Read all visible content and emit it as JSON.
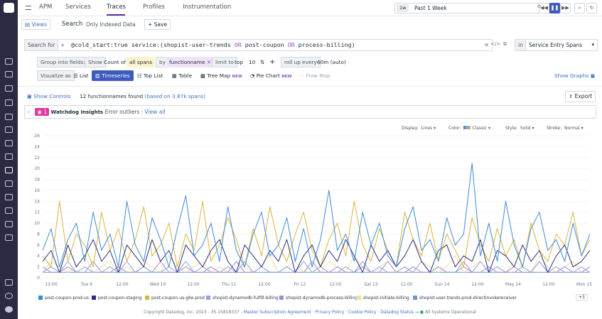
{
  "nav": {
    "app": "APM",
    "tabs": [
      "Services",
      "Traces",
      "Profiles",
      "Instrumentation"
    ],
    "active": "Traces"
  },
  "time": {
    "chip": "1w",
    "label": "Past 1 Week"
  },
  "search_bar": {
    "views": "Views",
    "title": "Search",
    "subtitle": "Only Indexed Data",
    "save": "Save"
  },
  "query": {
    "prefix": "Search for",
    "text_a": "@cold_start:true  service:(shopist-user-trends ",
    "or1": "OR",
    "text_b": " post-coupon ",
    "or2": "OR",
    "text_c": " process-billing)",
    "in": "in",
    "scope": "Service Entry Spans"
  },
  "group": {
    "label": "Group into fields:",
    "show": "Show",
    "count": "Count of",
    "all": "all spans",
    "by": "by",
    "field": "functionname",
    "limit": "limit to",
    "top": "top",
    "n": "10",
    "rollup": "roll up every",
    "interval": "60m (auto)"
  },
  "viz": {
    "label": "Visualize as",
    "options": [
      "List",
      "Timeseries",
      "Top List",
      "Table",
      "Tree Map",
      "Pie Chart",
      "Flow Map"
    ],
    "new": "NEW",
    "show_graphs": "Show Graphs"
  },
  "controls": {
    "show": "Show Controls",
    "found": "12 functionnames found",
    "based": "(based on 3.87k spans)",
    "export": "Export"
  },
  "watchdog": {
    "count": "1",
    "title": "Watchdog Insights",
    "sub": "Error outliers",
    "view": "View all"
  },
  "display": {
    "display_l": "Display:",
    "display_v": "Lines",
    "color_l": "Color:",
    "color_v": "Classic",
    "style_l": "Style:",
    "style_v": "Solid",
    "stroke_l": "Stroke:",
    "stroke_v": "Normal"
  },
  "chart_data": {
    "type": "line",
    "ylim": [
      0,
      26
    ],
    "yticks": [
      "0",
      "2",
      "4",
      "6",
      "8",
      "10",
      "12",
      "14",
      "16",
      "18",
      "20",
      "22",
      "24",
      "26"
    ],
    "xticks": [
      "12:00",
      "Tue 9",
      "12:00",
      "Wed 10",
      "12:00",
      "Thu 11",
      "12:00",
      "Fri 12",
      "12:00",
      "Sat 13",
      "12:00",
      "Sun 14",
      "12:00",
      "May 14",
      "12:00",
      "Mon 15"
    ],
    "series": [
      {
        "name": "post-coupon-prod-us",
        "color": "#3d8ad6",
        "values": [
          5,
          9,
          2,
          7,
          10,
          3,
          12,
          5,
          8,
          2,
          14,
          6,
          3,
          11,
          7,
          2,
          9,
          15,
          4,
          6,
          10,
          3,
          13,
          5,
          2,
          8,
          12,
          4,
          6,
          11,
          3,
          9,
          2,
          7,
          16,
          5,
          8,
          3,
          12,
          6,
          10,
          4,
          2,
          9,
          13,
          5,
          7,
          3,
          11,
          6,
          8,
          21,
          4,
          10,
          3,
          14,
          6,
          2,
          9,
          12,
          5,
          7,
          3,
          10,
          4,
          8
        ]
      },
      {
        "name": "post-coupon-staging",
        "color": "#2b2f7c",
        "values": [
          3,
          5,
          1,
          6,
          2,
          4,
          7,
          3,
          5,
          1,
          6,
          4,
          2,
          7,
          3,
          5,
          1,
          6,
          4,
          2,
          5,
          7,
          3,
          1,
          6,
          4,
          2,
          5,
          3,
          7,
          1,
          4,
          6,
          2,
          5,
          3,
          7,
          4,
          1,
          6,
          3,
          5,
          2,
          4,
          7,
          3,
          1,
          5,
          6,
          2,
          4,
          3,
          7,
          1,
          5,
          4,
          2,
          6,
          3,
          5,
          1,
          4,
          6,
          2,
          3,
          5
        ]
      },
      {
        "name": "post-coupon-us-gke-prod",
        "color": "#d9b43c",
        "values": [
          4,
          2,
          14,
          3,
          8,
          6,
          2,
          12,
          5,
          9,
          3,
          7,
          13,
          4,
          6,
          10,
          2,
          8,
          5,
          14,
          3,
          6,
          11,
          7,
          2,
          9,
          4,
          13,
          6,
          3,
          8,
          12,
          5,
          2,
          7,
          10,
          4,
          14,
          6,
          3,
          9,
          5,
          2,
          12,
          7,
          4,
          10,
          3,
          8,
          5,
          2,
          11,
          6,
          3,
          9,
          4,
          7,
          2,
          10,
          5,
          3,
          8,
          6,
          12,
          4,
          7
        ]
      },
      {
        "name": "shopist-dynamodb-fulfill-billing",
        "color": "#8fa3d9",
        "values": [
          1,
          2,
          1,
          3,
          1,
          2,
          1,
          1,
          2,
          1,
          3,
          1,
          2,
          1,
          1,
          2,
          1,
          3,
          1,
          2,
          1,
          1,
          2,
          1,
          3,
          1,
          2,
          1,
          1,
          2,
          1,
          3,
          1,
          2,
          1,
          1,
          2,
          1,
          3,
          1,
          2,
          1,
          1,
          2,
          1,
          3,
          1,
          2,
          1,
          1,
          2,
          1,
          3,
          1,
          2,
          1,
          1,
          2,
          1,
          3,
          1,
          2,
          1,
          1,
          2,
          1
        ]
      },
      {
        "name": "shopist-dynamodb-process-billing",
        "color": "#a58ad8",
        "values": [
          2,
          1,
          1,
          2,
          1,
          1,
          3,
          1,
          1,
          2,
          1,
          1,
          2,
          1,
          3,
          1,
          1,
          2,
          1,
          1,
          2,
          1,
          1,
          3,
          1,
          1,
          2,
          1,
          1,
          2,
          1,
          1,
          3,
          1,
          1,
          2,
          1,
          1,
          2,
          1,
          1,
          3,
          1,
          1,
          2,
          1,
          1,
          2,
          1,
          1,
          3,
          1,
          1,
          2,
          1,
          1,
          2,
          1,
          1,
          3,
          1,
          1,
          2,
          1,
          1,
          2
        ]
      },
      {
        "name": "shopist-initiate-billing",
        "color": "#efdfa4",
        "values": [
          1,
          3,
          2,
          1,
          2,
          4,
          1,
          2,
          3,
          1,
          2,
          1,
          3,
          2,
          1,
          4,
          2,
          1,
          2,
          3,
          1,
          2,
          1,
          3,
          2,
          1,
          2,
          4,
          1,
          2,
          3,
          1,
          2,
          1,
          3,
          2,
          1,
          4,
          2,
          1,
          2,
          3,
          1,
          2,
          1,
          3,
          2,
          1,
          2,
          4,
          1,
          2,
          3,
          1,
          2,
          1,
          3,
          2,
          1,
          4,
          2,
          1,
          2,
          3,
          1,
          2
        ]
      },
      {
        "name": "shopist-user-trends-prod-directinvokereceiver",
        "color": "#6699cc",
        "values": [
          1,
          1,
          1,
          1,
          1,
          1,
          1,
          1,
          1,
          1,
          1,
          1,
          1,
          1,
          1,
          1,
          1,
          1,
          1,
          1,
          1,
          1,
          1,
          1,
          1,
          1,
          1,
          1,
          1,
          1,
          1,
          1,
          1,
          1,
          1,
          1,
          1,
          1,
          1,
          1,
          1,
          1,
          1,
          1,
          1,
          1,
          1,
          1,
          1,
          1,
          1,
          1,
          1,
          1,
          1,
          1,
          1,
          1,
          1,
          1,
          1,
          1,
          1,
          1,
          1,
          1
        ]
      }
    ],
    "more": "+3"
  },
  "footer": {
    "copy": "Copyright Datadog, Inc. 2023 - 35.15818337 -",
    "msa": "Master Subscription Agreement",
    "privacy": "Privacy Policy",
    "cookie": "Cookie Policy",
    "status": "Datadog Status →",
    "ops": "All Systems Operational"
  }
}
